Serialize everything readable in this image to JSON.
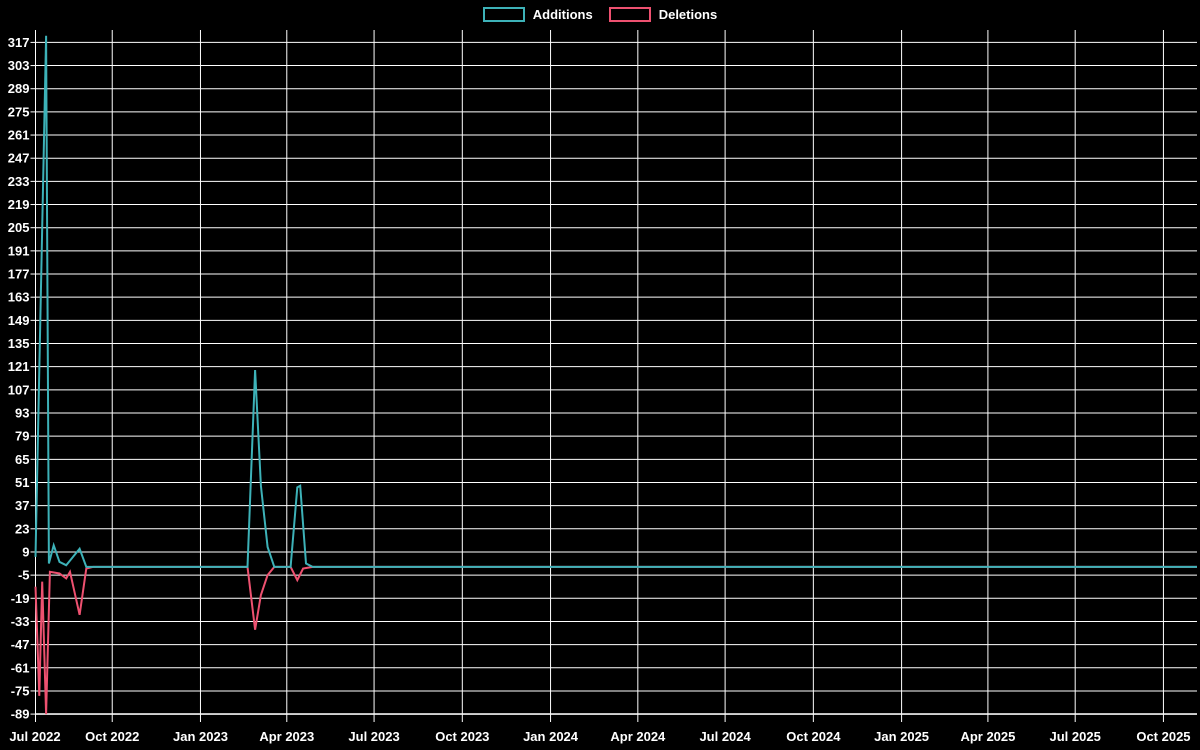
{
  "chart_data": {
    "type": "line",
    "title": "",
    "legend_position": "top-center",
    "grid": true,
    "background_color": "#000000",
    "grid_color": "#ffffff",
    "text_color": "#ffffff",
    "x_range": {
      "start": "2022-07-13",
      "end": "2025-11-05"
    },
    "y_range": {
      "min": -89,
      "max": 317
    },
    "y_ticks": [
      -89,
      -75,
      -61,
      -47,
      -33,
      -19,
      -5,
      9,
      23,
      37,
      51,
      65,
      79,
      93,
      107,
      121,
      135,
      149,
      163,
      177,
      191,
      205,
      219,
      233,
      247,
      261,
      275,
      289,
      303,
      317
    ],
    "x_ticks": [
      {
        "label": "Jul 2022",
        "date": "2022-07-01"
      },
      {
        "label": "Oct 2022",
        "date": "2022-10-01"
      },
      {
        "label": "Jan 2023",
        "date": "2023-01-01"
      },
      {
        "label": "Apr 2023",
        "date": "2023-04-01"
      },
      {
        "label": "Jul 2023",
        "date": "2023-07-01"
      },
      {
        "label": "Oct 2023",
        "date": "2023-10-01"
      },
      {
        "label": "Jan 2024",
        "date": "2024-01-01"
      },
      {
        "label": "Apr 2024",
        "date": "2024-04-01"
      },
      {
        "label": "Jul 2024",
        "date": "2024-07-01"
      },
      {
        "label": "Oct 2024",
        "date": "2024-10-01"
      },
      {
        "label": "Jan 2025",
        "date": "2025-01-01"
      },
      {
        "label": "Apr 2025",
        "date": "2025-04-01"
      },
      {
        "label": "Jul 2025",
        "date": "2025-07-01"
      },
      {
        "label": "Oct 2025",
        "date": "2025-10-01"
      }
    ],
    "series": [
      {
        "name": "Additions",
        "color": "#3db2b8",
        "points": [
          [
            "2022-07-13",
            6
          ],
          [
            "2022-07-24",
            321
          ],
          [
            "2022-07-27",
            2
          ],
          [
            "2022-08-01",
            13
          ],
          [
            "2022-08-07",
            3
          ],
          [
            "2022-08-14",
            1
          ],
          [
            "2022-08-28",
            11
          ],
          [
            "2022-09-04",
            0
          ],
          [
            "2023-02-19",
            0
          ],
          [
            "2023-02-27",
            119
          ],
          [
            "2023-03-05",
            49
          ],
          [
            "2023-03-12",
            12
          ],
          [
            "2023-03-19",
            0
          ],
          [
            "2023-04-05",
            0
          ],
          [
            "2023-04-12",
            48
          ],
          [
            "2023-04-15",
            49
          ],
          [
            "2023-04-21",
            2
          ],
          [
            "2023-04-28",
            0
          ],
          [
            "2025-11-05",
            0
          ]
        ]
      },
      {
        "name": "Deletions",
        "color": "#ee5170",
        "points": [
          [
            "2022-07-13",
            -12
          ],
          [
            "2022-07-17",
            -78
          ],
          [
            "2022-07-20",
            -9
          ],
          [
            "2022-07-24",
            -89
          ],
          [
            "2022-07-28",
            -3
          ],
          [
            "2022-08-07",
            -4
          ],
          [
            "2022-08-14",
            -7
          ],
          [
            "2022-08-18",
            -3
          ],
          [
            "2022-08-28",
            -29
          ],
          [
            "2022-09-04",
            -1
          ],
          [
            "2022-09-11",
            0
          ],
          [
            "2023-02-19",
            0
          ],
          [
            "2023-02-27",
            -38
          ],
          [
            "2023-03-05",
            -17
          ],
          [
            "2023-03-12",
            -5
          ],
          [
            "2023-03-19",
            0
          ],
          [
            "2023-04-05",
            0
          ],
          [
            "2023-04-12",
            -8
          ],
          [
            "2023-04-18",
            -1
          ],
          [
            "2023-04-28",
            0
          ],
          [
            "2025-11-05",
            0
          ]
        ]
      }
    ]
  }
}
